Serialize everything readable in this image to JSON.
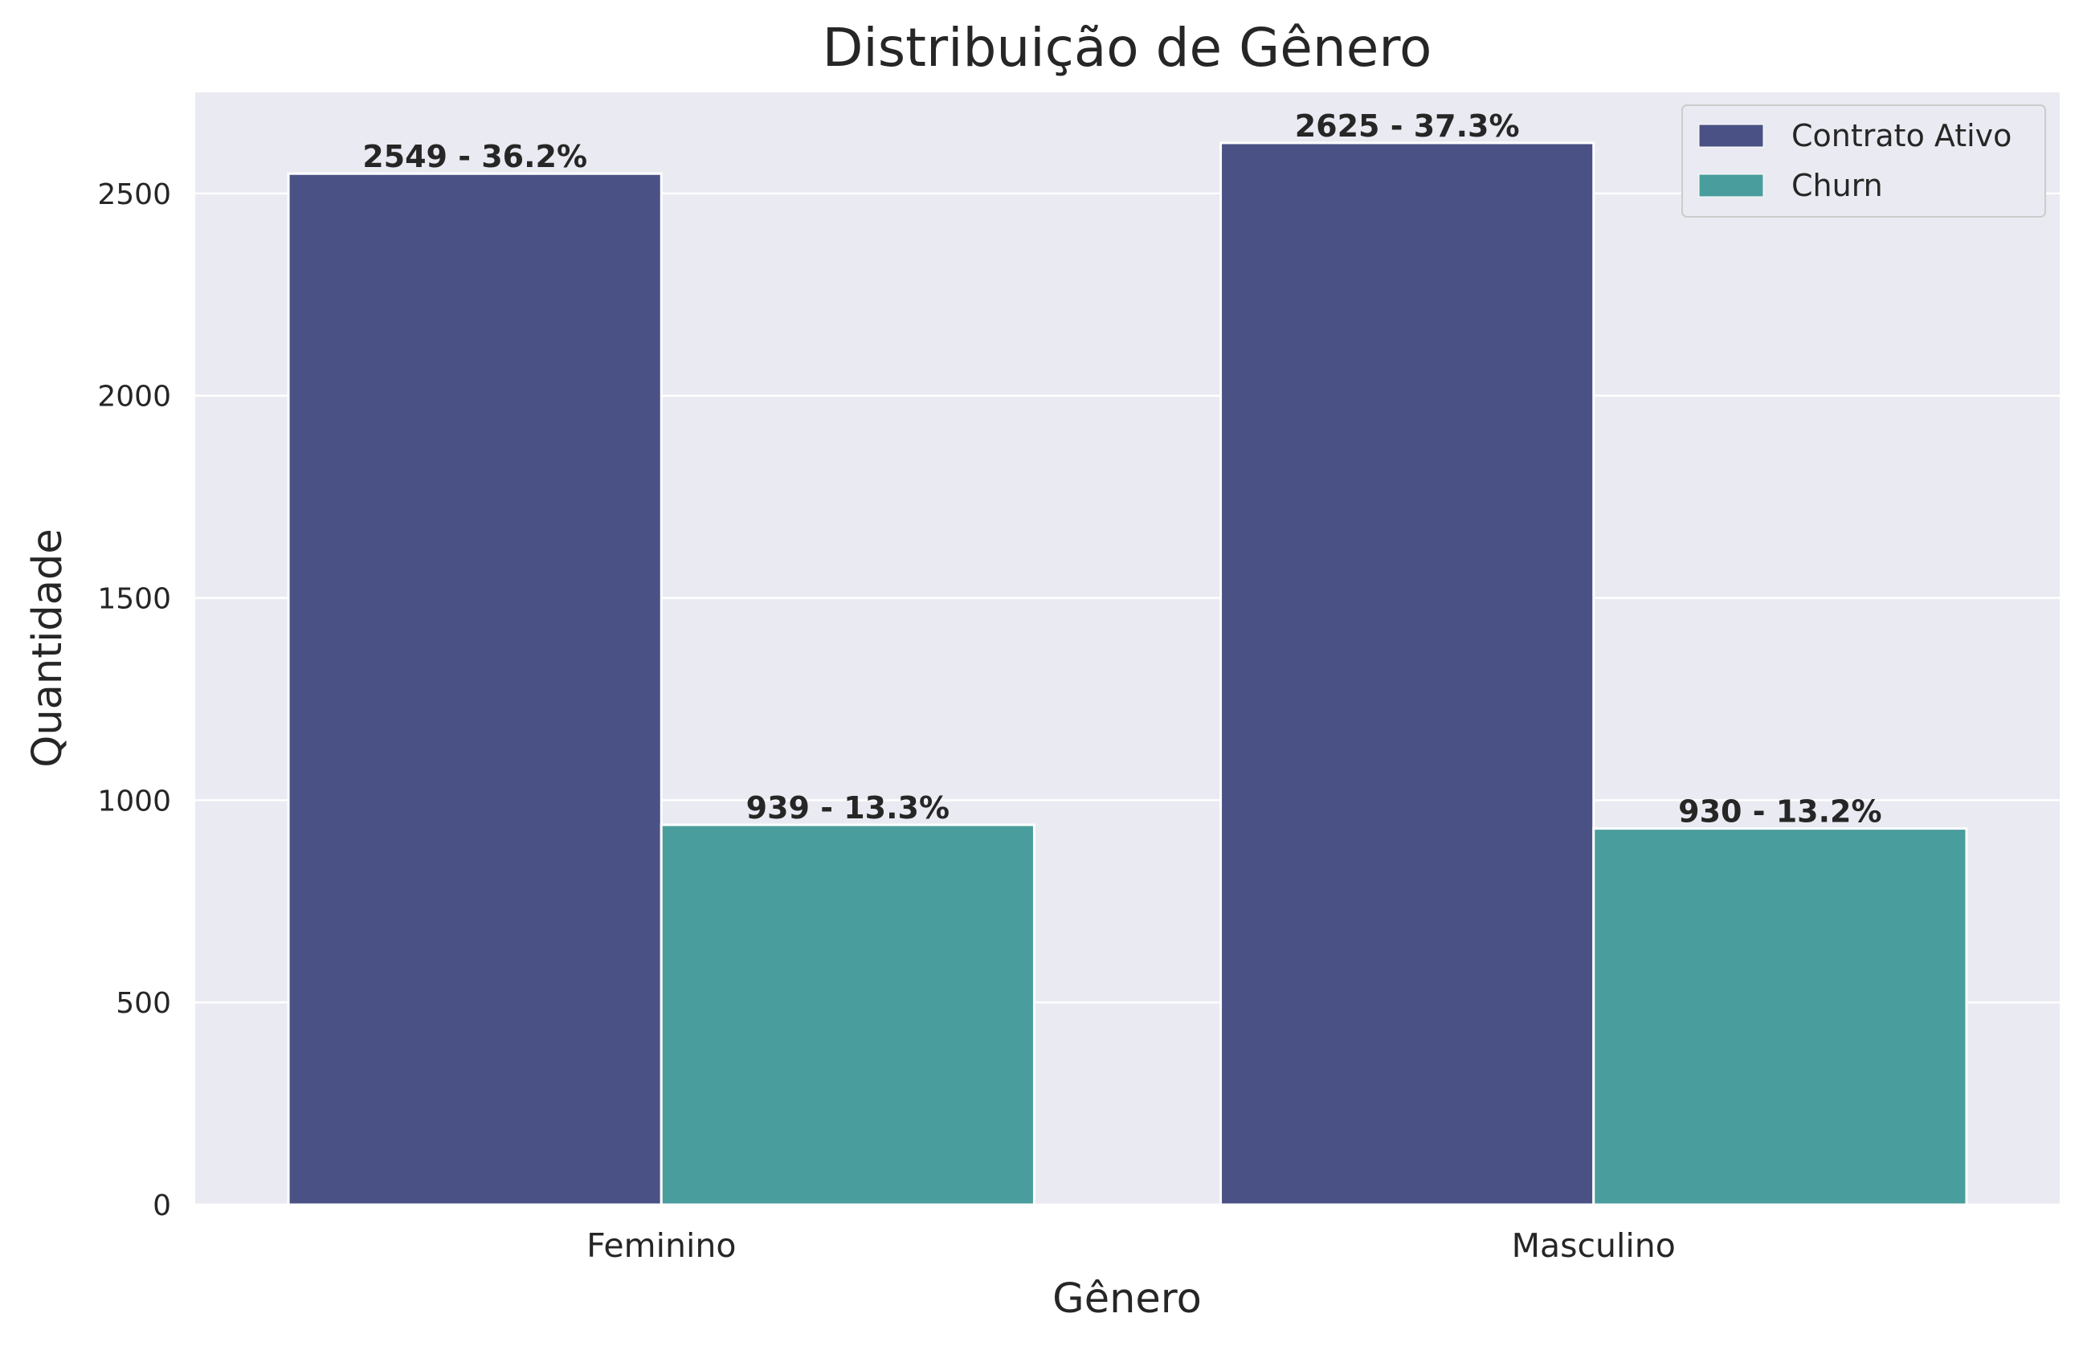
{
  "chart_data": {
    "type": "bar",
    "title": "Distribuição de Gênero",
    "xlabel": "Gênero",
    "ylabel": "Quantidade",
    "categories": [
      "Feminino",
      "Masculino"
    ],
    "series": [
      {
        "name": "Contrato Ativo",
        "color": "#4a5184",
        "values": [
          2549,
          2625
        ],
        "labels": [
          "2549 - 36.2%",
          "2625 - 37.3%"
        ]
      },
      {
        "name": "Churn",
        "color": "#4a9d9d",
        "values": [
          939,
          930
        ],
        "labels": [
          "939 - 13.3%",
          "930 - 13.2%"
        ]
      }
    ],
    "ylim": [
      0,
      2750
    ],
    "yticks": [
      0,
      500,
      1000,
      1500,
      2000,
      2500
    ],
    "grid": true,
    "legend_position": "top-right",
    "background_color": "#eaeaf2"
  }
}
